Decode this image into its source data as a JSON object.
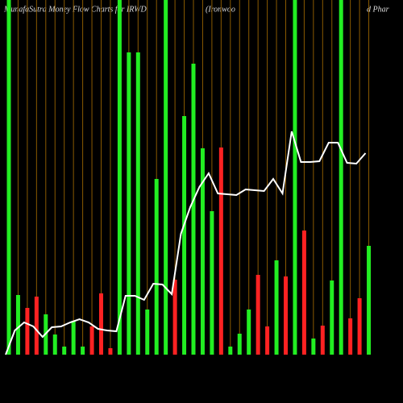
{
  "chart_data": {
    "type": "bar",
    "title": "MunafaSutra  Money Flow  Charts for IRWD",
    "title_company_start": "(Ironwoo",
    "title_company_end": "d Phar",
    "values": [
      440,
      74,
      58,
      72,
      50,
      25,
      10,
      42,
      10,
      35,
      76,
      8,
      440,
      375,
      375,
      56,
      218,
      440,
      93,
      296,
      361,
      256,
      178,
      257,
      10,
      26,
      56,
      99,
      35,
      117,
      97,
      440,
      154,
      20,
      36,
      92,
      440,
      45,
      70,
      135
    ],
    "colors": [
      "#22ee22",
      "#22ee22",
      "#ff2222",
      "#ff2222",
      "#22ee22",
      "#22ee22",
      "#22ee22",
      "#22ee22",
      "#22ee22",
      "#ff2222",
      "#ff2222",
      "#ff2222",
      "#22ee22",
      "#22ee22",
      "#22ee22",
      "#22ee22",
      "#22ee22",
      "#22ee22",
      "#ff2222",
      "#22ee22",
      "#22ee22",
      "#22ee22",
      "#22ee22",
      "#ff2222",
      "#22ee22",
      "#22ee22",
      "#22ee22",
      "#ff2222",
      "#ff2222",
      "#22ee22",
      "#ff2222",
      "#22ee22",
      "#ff2222",
      "#22ee22",
      "#ff2222",
      "#22ee22",
      "#22ee22",
      "#ff2222",
      "#ff2222",
      "#22ee22"
    ],
    "line_values": [
      0,
      30,
      40,
      35,
      22,
      34,
      35,
      40,
      44,
      40,
      32,
      30,
      29,
      73,
      73,
      68,
      88,
      87,
      75,
      150,
      183,
      208,
      225,
      200,
      199,
      198,
      205,
      204,
      203,
      218,
      200,
      277,
      239,
      239,
      240,
      263,
      263,
      238,
      237,
      250
    ],
    "line_color": "#ffffff",
    "grid_color": "#8a5a00",
    "ylim": [
      0,
      440
    ],
    "grid": true
  }
}
